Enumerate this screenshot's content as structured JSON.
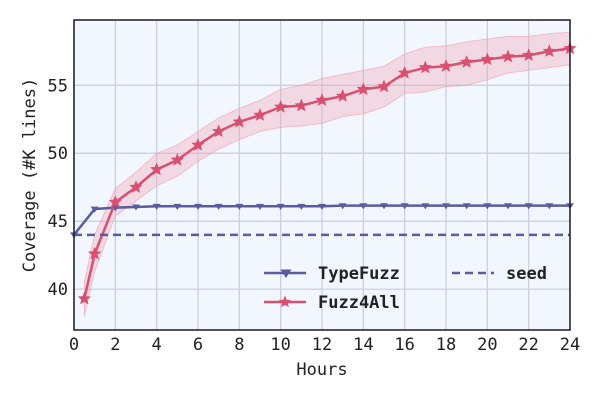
{
  "chart_data": {
    "type": "line",
    "title": "",
    "xlabel": "Hours",
    "ylabel": "Coverage (#K lines)",
    "xlim": [
      0,
      24
    ],
    "ylim": [
      37,
      59.8
    ],
    "x_ticks": [
      0,
      2,
      4,
      6,
      8,
      10,
      12,
      14,
      16,
      18,
      20,
      22,
      24
    ],
    "y_ticks": [
      40,
      45,
      50,
      55
    ],
    "grid": true,
    "legend": {
      "placement": "lower-right",
      "columns": 2
    },
    "series": [
      {
        "name": "TypeFuzz",
        "color": "#5b5b9e",
        "marker": "triangle-down",
        "line_style": "solid",
        "x": [
          0,
          1,
          2,
          3,
          4,
          5,
          6,
          7,
          8,
          9,
          10,
          11,
          12,
          13,
          14,
          15,
          16,
          17,
          18,
          19,
          20,
          21,
          22,
          23,
          24
        ],
        "y": [
          44.0,
          45.9,
          46.0,
          46.05,
          46.1,
          46.1,
          46.1,
          46.1,
          46.1,
          46.1,
          46.1,
          46.1,
          46.1,
          46.15,
          46.15,
          46.15,
          46.15,
          46.15,
          46.15,
          46.15,
          46.15,
          46.15,
          46.15,
          46.15,
          46.15
        ]
      },
      {
        "name": "Fuzz4All",
        "color": "#d94f70",
        "marker": "star",
        "line_style": "solid",
        "x": [
          0.5,
          1,
          2,
          3,
          4,
          5,
          6,
          7,
          8,
          9,
          10,
          11,
          12,
          13,
          14,
          15,
          16,
          17,
          18,
          19,
          20,
          21,
          22,
          23,
          24
        ],
        "y": [
          39.3,
          42.6,
          46.4,
          47.5,
          48.8,
          49.5,
          50.6,
          51.6,
          52.3,
          52.8,
          53.4,
          53.5,
          53.9,
          54.2,
          54.7,
          54.9,
          55.9,
          56.3,
          56.4,
          56.7,
          56.9,
          57.1,
          57.2,
          57.5,
          57.7
        ],
        "band_lower": [
          38.0,
          41.3,
          45.4,
          46.5,
          47.6,
          48.3,
          49.4,
          50.3,
          51.0,
          51.6,
          51.9,
          52.0,
          52.2,
          52.7,
          52.9,
          53.4,
          54.4,
          54.5,
          54.9,
          55.0,
          55.4,
          55.9,
          56.1,
          56.3,
          56.5
        ],
        "band_upper": [
          40.5,
          44.0,
          47.4,
          48.6,
          50.0,
          50.6,
          51.6,
          52.6,
          53.3,
          53.9,
          54.7,
          55.0,
          55.5,
          55.8,
          56.1,
          56.4,
          57.3,
          57.8,
          57.9,
          58.2,
          58.4,
          58.6,
          58.6,
          58.8,
          58.9
        ],
        "band_color": "#f0a0b0"
      },
      {
        "name": "seed",
        "color": "#5b5b9e",
        "marker": "none",
        "line_style": "dashed",
        "x": [
          0,
          24
        ],
        "y": [
          44.0,
          44.0
        ]
      }
    ]
  }
}
